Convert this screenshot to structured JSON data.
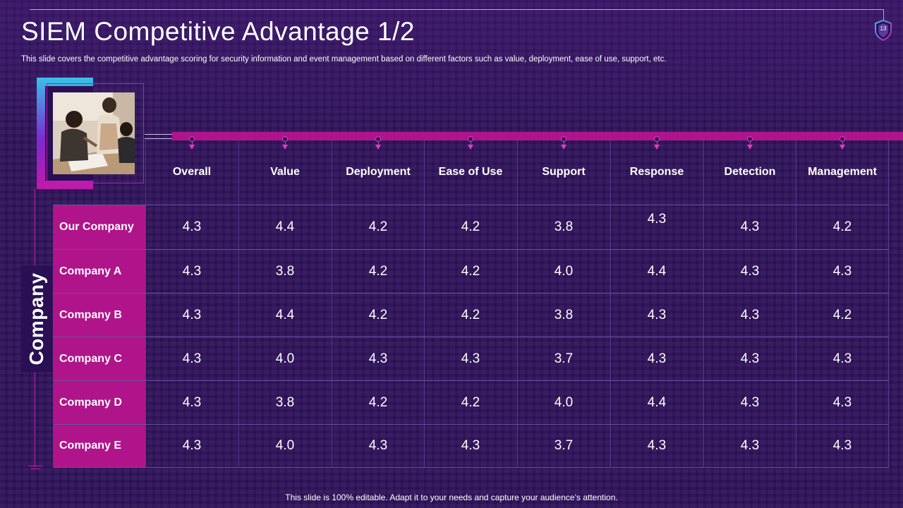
{
  "slide": {
    "title": "SIEM Competitive Advantage 1/2",
    "subtitle": "This slide covers the competitive advantage scoring for security information and event management based on different factors such as value, deployment, ease of use, support, etc.",
    "page_number": "13",
    "footer": "This slide is 100% editable. Adapt it to your needs and capture your audience’s attention."
  },
  "table": {
    "row_axis_label": "Company",
    "columns": [
      "Overall",
      "Value",
      "Deployment",
      "Ease of Use",
      "Support",
      "Response",
      "Detection",
      "Management"
    ],
    "rows": [
      {
        "company": "Our Company",
        "scores": [
          "4.3",
          "4.4",
          "4.2",
          "4.2",
          "3.8",
          "4.3",
          "4.3",
          "4.2"
        ]
      },
      {
        "company": "Company A",
        "scores": [
          "4.3",
          "3.8",
          "4.2",
          "4.2",
          "4.0",
          "4.4",
          "4.3",
          "4.3"
        ]
      },
      {
        "company": "Company B",
        "scores": [
          "4.3",
          "4.4",
          "4.2",
          "4.2",
          "3.8",
          "4.3",
          "4.3",
          "4.2"
        ]
      },
      {
        "company": "Company C",
        "scores": [
          "4.3",
          "4.0",
          "4.3",
          "4.3",
          "3.7",
          "4.3",
          "4.3",
          "4.3"
        ]
      },
      {
        "company": "Company D",
        "scores": [
          "4.3",
          "3.8",
          "4.2",
          "4.2",
          "4.0",
          "4.4",
          "4.3",
          "4.3"
        ]
      },
      {
        "company": "Company E",
        "scores": [
          "4.3",
          "4.0",
          "4.3",
          "4.3",
          "3.7",
          "4.3",
          "4.3",
          "4.3"
        ]
      }
    ]
  },
  "colors": {
    "background": "#2a0f55",
    "accent_magenta": "#b0148a",
    "accent_cyan": "#3ac0e8"
  },
  "icons": {
    "page_badge": "shield-icon",
    "column_pin": "arrow-down-pin-icon"
  }
}
